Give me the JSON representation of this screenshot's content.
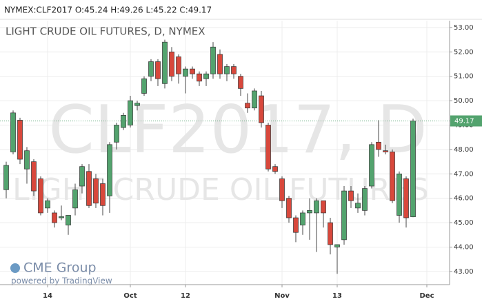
{
  "chart_data": {
    "type": "candlestick",
    "header": "NYMEX:CLF2017 O:45.24 H:49.26 L:45.22 C:49.17",
    "title": "LIGHT CRUDE OIL FUTURES, D, NYMEX",
    "watermark": [
      "CLF2017, D",
      "LIGHT CRUDE OIL FUTURES"
    ],
    "logo": "CME Group",
    "credit": "powered by TradingView",
    "categories": [
      null,
      null,
      null,
      null,
      null,
      null,
      "14",
      null,
      null,
      null,
      null,
      null,
      null,
      null,
      null,
      null,
      null,
      null,
      "Oct",
      null,
      null,
      null,
      null,
      null,
      null,
      null,
      "12",
      null,
      null,
      null,
      null,
      null,
      null,
      null,
      null,
      null,
      null,
      null,
      null,
      null,
      "Nov",
      null,
      null,
      null,
      null,
      null,
      null,
      null,
      "13",
      null,
      null,
      null,
      null,
      null,
      null,
      null,
      null,
      null,
      null,
      null,
      null,
      "Dec"
    ],
    "open": [
      46.35,
      47.9,
      49.2,
      47.2,
      47.5,
      46.8,
      45.6,
      45.4,
      45.2,
      44.9,
      45.6,
      46.5,
      47.1,
      46.8,
      46.6,
      46.1,
      48.3,
      48.9,
      49.0,
      49.8,
      50.3,
      51.0,
      51.6,
      50.7,
      52.0,
      51.8,
      51.0,
      51.3,
      51.1,
      50.9,
      51.1,
      51.9,
      51.1,
      51.4,
      51.0,
      49.9,
      49.7,
      50.2,
      49.0,
      47.3,
      46.8,
      46.0,
      45.2,
      44.9,
      45.4,
      45.4,
      45.9,
      45.0,
      44.0,
      44.3,
      46.3,
      45.6,
      45.5,
      46.5,
      48.3,
      47.95,
      47.9,
      45.3,
      46.8,
      45.24,
      null,
      null
    ],
    "high": [
      47.5,
      49.6,
      49.3,
      48.1,
      47.6,
      46.9,
      46.0,
      45.5,
      45.7,
      45.3,
      46.6,
      47.4,
      47.4,
      47.0,
      46.8,
      48.3,
      49.1,
      49.5,
      50.2,
      50.0,
      51.0,
      51.7,
      51.7,
      52.5,
      52.2,
      51.9,
      51.4,
      51.4,
      51.2,
      51.2,
      52.4,
      52.1,
      51.5,
      51.5,
      51.1,
      50.3,
      50.5,
      50.4,
      49.1,
      47.4,
      46.9,
      46.1,
      45.3,
      45.5,
      46.0,
      46.0,
      45.9,
      45.2,
      44.1,
      46.5,
      46.5,
      46.2,
      46.5,
      48.3,
      49.2,
      48.2,
      48.0,
      47.1,
      46.9,
      49.26,
      null,
      null
    ],
    "low": [
      46.0,
      47.8,
      47.4,
      46.6,
      46.1,
      45.3,
      45.4,
      44.8,
      45.1,
      44.5,
      45.3,
      46.2,
      45.6,
      45.6,
      45.3,
      45.4,
      48.0,
      48.8,
      48.9,
      49.6,
      50.2,
      50.8,
      50.6,
      50.5,
      50.8,
      50.7,
      50.3,
      50.9,
      50.6,
      50.6,
      50.9,
      50.9,
      50.8,
      50.9,
      50.2,
      49.5,
      49.6,
      48.9,
      47.1,
      47.0,
      45.6,
      45.0,
      44.2,
      44.5,
      44.3,
      43.8,
      44.8,
      43.7,
      42.9,
      44.1,
      45.6,
      45.4,
      45.3,
      46.4,
      47.7,
      47.8,
      45.8,
      45.0,
      44.8,
      45.22,
      null,
      null
    ],
    "close": [
      47.35,
      49.5,
      47.6,
      47.95,
      46.3,
      45.4,
      45.9,
      45.0,
      45.25,
      45.3,
      46.35,
      47.3,
      45.7,
      45.8,
      45.7,
      48.2,
      49.0,
      49.4,
      50.0,
      49.9,
      50.9,
      51.6,
      50.9,
      52.4,
      51.0,
      51.1,
      51.3,
      51.1,
      50.8,
      51.1,
      52.2,
      51.1,
      51.4,
      51.1,
      50.5,
      49.7,
      50.4,
      49.1,
      47.2,
      47.1,
      45.9,
      45.2,
      44.6,
      45.4,
      45.5,
      45.9,
      45.4,
      44.1,
      44.1,
      46.3,
      45.9,
      45.8,
      46.4,
      48.2,
      48.0,
      47.9,
      45.9,
      47.0,
      45.2,
      49.17,
      null,
      null
    ],
    "up_color": "#53a36e",
    "down_color": "#d8483c",
    "ylim": [
      42.46,
      53.28
    ],
    "yticks": [
      {
        "value": 43,
        "label": "43.00"
      },
      {
        "value": 44,
        "label": "44.00"
      },
      {
        "value": 45,
        "label": "45.00"
      },
      {
        "value": 46,
        "label": "46.00"
      },
      {
        "value": 47,
        "label": "47.00"
      },
      {
        "value": 48,
        "label": "48.00"
      },
      {
        "value": 49,
        "label": "49.00"
      },
      {
        "value": 50,
        "label": "50.00"
      },
      {
        "value": 51,
        "label": "51.00"
      },
      {
        "value": 52,
        "label": "52.00"
      },
      {
        "value": 53,
        "label": "53.00"
      }
    ],
    "grid": true
  }
}
